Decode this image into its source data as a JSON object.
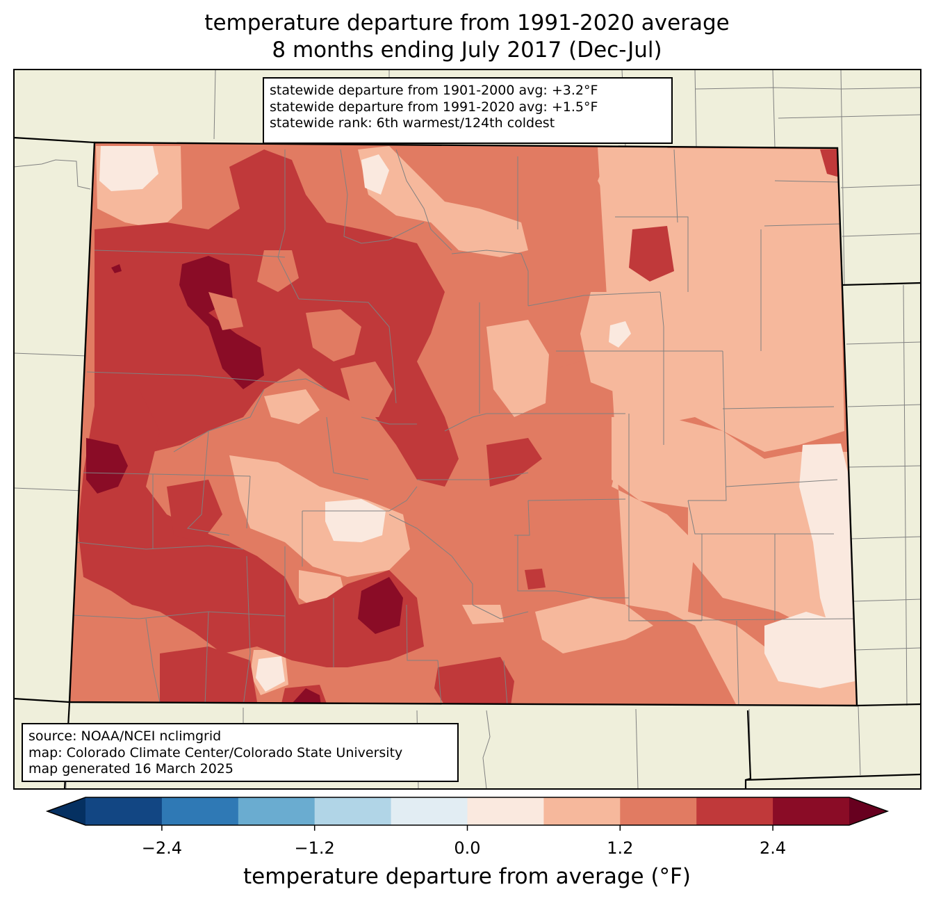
{
  "title_line1": "temperature departure from 1991-2020 average",
  "title_line2": "8 months ending July 2017 (Dec-Jul)",
  "stats": {
    "line1": "statewide departure from 1901-2000 avg: +3.2°F",
    "line2": "statewide departure from 1991-2020 avg: +1.5°F",
    "line3": "statewide rank: 6th warmest/124th coldest"
  },
  "source": {
    "line1": "source: NOAA/NCEI nclimgrid",
    "line2": "map: Colorado Climate Center/Colorado State University",
    "line3": "map generated 16 March 2025"
  },
  "colorbar": {
    "label": "temperature departure from average (°F)",
    "ticks": [
      "−2.4",
      "−1.2",
      "0.0",
      "1.2",
      "2.4"
    ],
    "tick_values": [
      -2.4,
      -1.2,
      0.0,
      1.2,
      2.4
    ],
    "range": [
      -3.0,
      3.0
    ],
    "step": 0.6,
    "colors": [
      "#124683",
      "#2f79b5",
      "#6aacd0",
      "#b1d5e7",
      "#e2edf3",
      "#fae9df",
      "#f6b89c",
      "#e17b62",
      "#c0393a",
      "#8a0c26"
    ],
    "under_color": "#053061",
    "over_color": "#67001f"
  },
  "map_colors": {
    "land_outside": "#efefdb",
    "state_border": "#000000",
    "county_lines": "#808080"
  }
}
